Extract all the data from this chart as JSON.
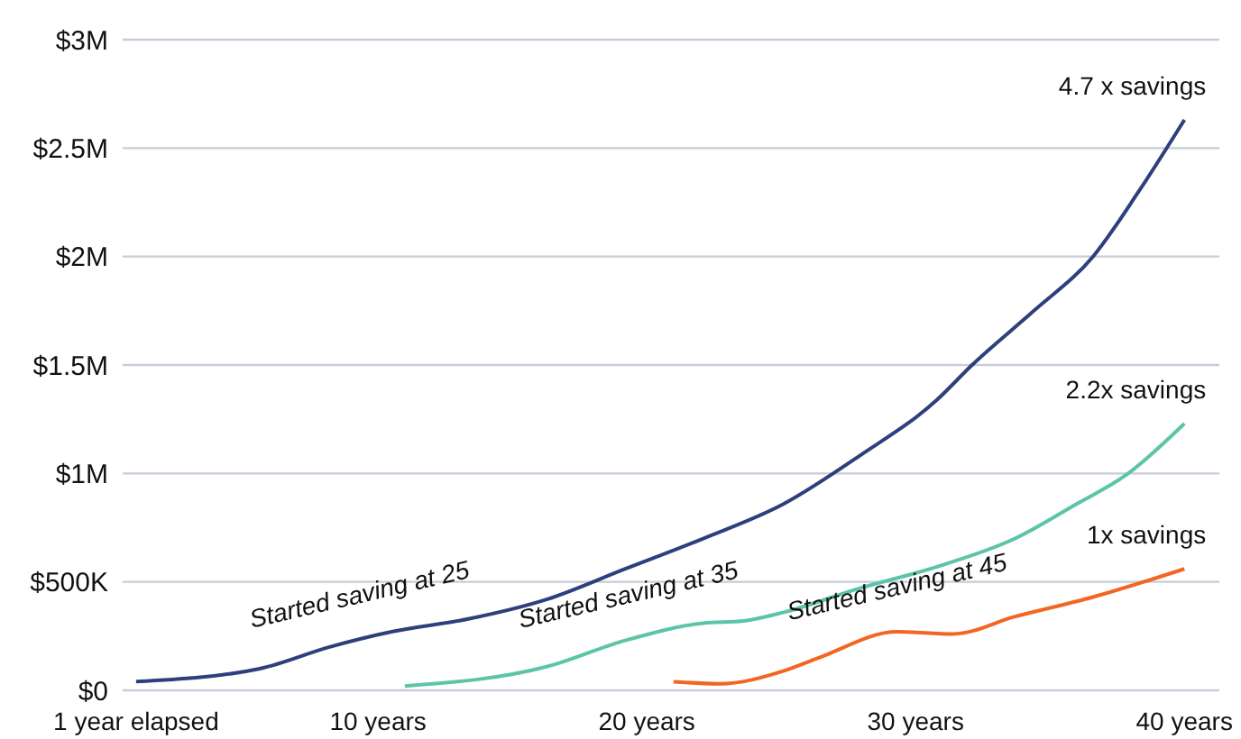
{
  "chart_data": {
    "type": "line",
    "xlim": [
      0.5,
      41.3
    ],
    "xticks": [
      {
        "value": 1,
        "label": "1 year elapsed"
      },
      {
        "value": 10,
        "label": "10 years"
      },
      {
        "value": 20,
        "label": "20 years"
      },
      {
        "value": 30,
        "label": "30 years"
      },
      {
        "value": 40,
        "label": "40 years"
      }
    ],
    "ylim": [
      0,
      3000000
    ],
    "yticks": [
      {
        "value": 0,
        "label": "$0"
      },
      {
        "value": 500000,
        "label": "$500K"
      },
      {
        "value": 1000000,
        "label": "$1M"
      },
      {
        "value": 1500000,
        "label": "$1.5M"
      },
      {
        "value": 2000000,
        "label": "$2M"
      },
      {
        "value": 2500000,
        "label": "$2.5M"
      },
      {
        "value": 3000000,
        "label": "$3M"
      }
    ],
    "grid": "y",
    "marker": "none",
    "series": [
      {
        "color": "#2e3f7c",
        "x": [
          1,
          5.6,
          8.2,
          10.5,
          13.4,
          16.3,
          19.2,
          22.1,
          25.1,
          27.9,
          30.8,
          32.1,
          34.4,
          36.6,
          38.3,
          40
        ],
        "values": [
          40000,
          100000,
          200000,
          270000,
          330000,
          420000,
          560000,
          700000,
          860000,
          1080000,
          1340000,
          1500000,
          1750000,
          2000000,
          2300000,
          2630000
        ]
      },
      {
        "color": "#5cc4a8",
        "x": [
          11,
          16.3,
          19.2,
          22.1,
          23.6,
          25.1,
          27.9,
          30.8,
          33.7,
          36,
          37.8,
          40
        ],
        "values": [
          20000,
          110000,
          230000,
          310000,
          320000,
          360000,
          470000,
          570000,
          700000,
          860000,
          990000,
          1230000
        ]
      },
      {
        "color": "#f26522",
        "x": [
          21,
          22.7,
          25.1,
          26.4,
          29.3,
          31.4,
          33.7,
          36.6,
          40
        ],
        "values": [
          40000,
          30000,
          90000,
          150000,
          270000,
          260000,
          340000,
          430000,
          560000
        ]
      }
    ],
    "annotations": [
      "Started saving at 25",
      "Started saving at 35",
      "Started saving at 45",
      "4.7 x savings",
      "2.2x savings",
      "1x savings"
    ]
  }
}
